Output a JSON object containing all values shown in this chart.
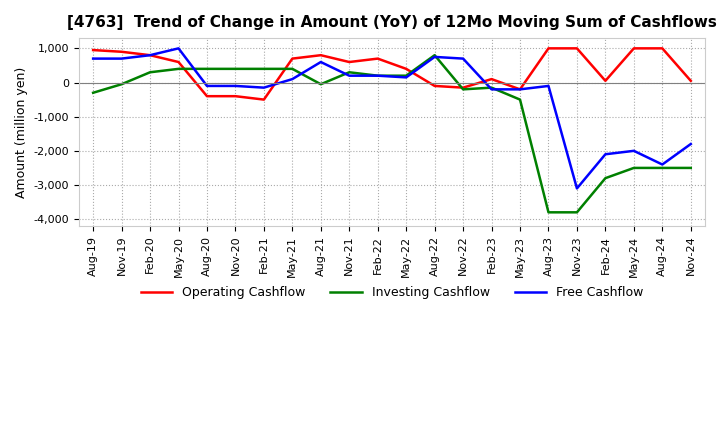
{
  "title": "[4763]  Trend of Change in Amount (YoY) of 12Mo Moving Sum of Cashflows",
  "ylabel": "Amount (million yen)",
  "ylim": [
    -4200,
    1300
  ],
  "yticks": [
    1000,
    0,
    -1000,
    -2000,
    -3000,
    -4000
  ],
  "legend": [
    "Operating Cashflow",
    "Investing Cashflow",
    "Free Cashflow"
  ],
  "colors": [
    "red",
    "green",
    "blue"
  ],
  "x_labels": [
    "Aug-19",
    "Nov-19",
    "Feb-20",
    "May-20",
    "Aug-20",
    "Nov-20",
    "Feb-21",
    "May-21",
    "Aug-21",
    "Nov-21",
    "Feb-22",
    "May-22",
    "Aug-22",
    "Nov-22",
    "Feb-23",
    "May-23",
    "Aug-23",
    "Nov-23",
    "Feb-24",
    "May-24",
    "Aug-24",
    "Nov-24"
  ],
  "operating": [
    950,
    900,
    800,
    600,
    -400,
    -400,
    -500,
    700,
    800,
    600,
    700,
    400,
    -100,
    -150,
    100,
    -200,
    1000,
    1000,
    50,
    1000,
    1000,
    50
  ],
  "investing": [
    -300,
    -50,
    300,
    400,
    400,
    400,
    400,
    400,
    -50,
    300,
    200,
    200,
    800,
    -200,
    -150,
    -500,
    -3800,
    -3800,
    -2800,
    -2500,
    -2500,
    -2500
  ],
  "free": [
    700,
    700,
    800,
    1000,
    -100,
    -100,
    -150,
    100,
    600,
    200,
    200,
    150,
    750,
    700,
    -200,
    -200,
    -100,
    -3100,
    -2100,
    -2000,
    -2400,
    -1800
  ],
  "background": "#ffffff",
  "grid_color": "#aaaaaa",
  "grid_style": "dotted",
  "title_fontsize": 11,
  "ylabel_fontsize": 9,
  "tick_fontsize": 8,
  "legend_fontsize": 9,
  "linewidth": 1.8
}
